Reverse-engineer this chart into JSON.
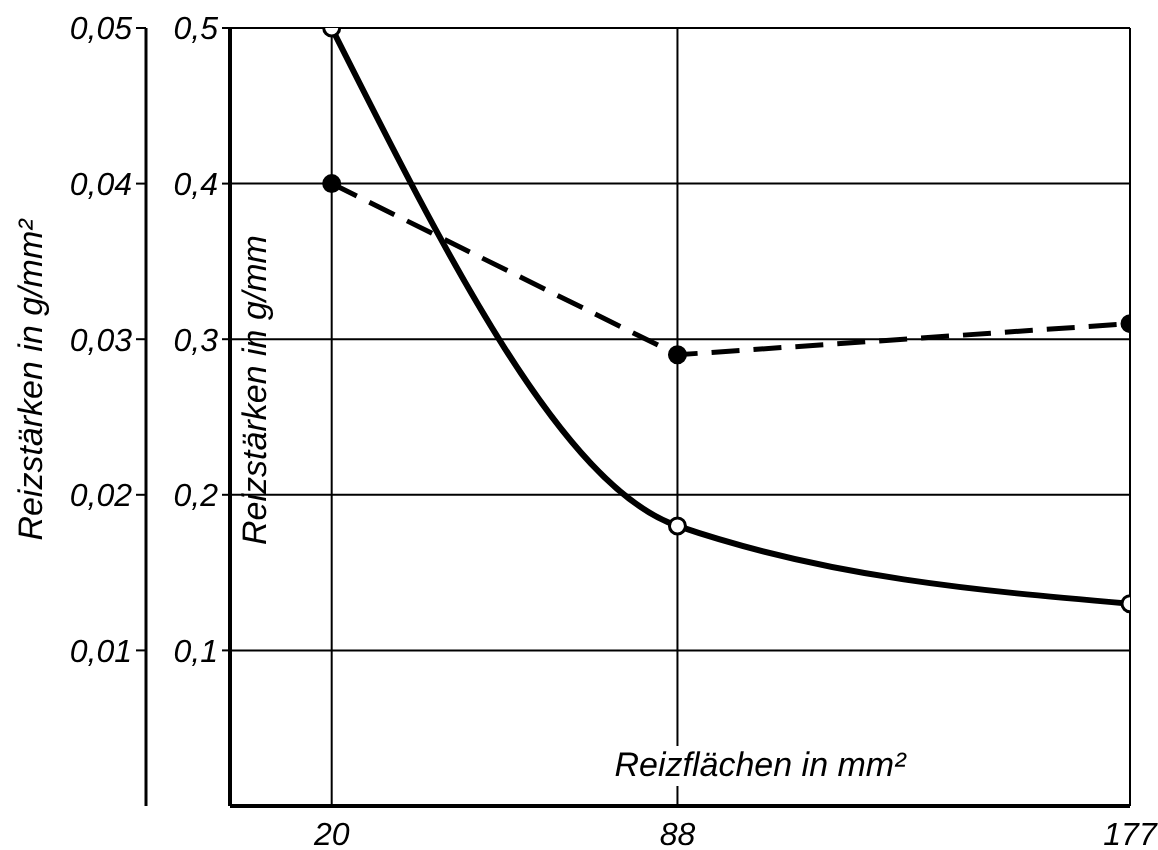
{
  "chart_data": {
    "type": "line",
    "xlabel": "Reizflächen in mm²",
    "ylabel": "Reizstärken in g/mm",
    "y2label": "Reizstärken in g/mm²",
    "x": [
      20,
      88,
      177
    ],
    "xlim": [
      0,
      177
    ],
    "xticks": [
      20,
      88,
      177
    ],
    "ylim": [
      0,
      0.5
    ],
    "yticks": [
      {
        "value": 0.1,
        "label": "0,1"
      },
      {
        "value": 0.2,
        "label": "0,2"
      },
      {
        "value": 0.3,
        "label": "0,3"
      },
      {
        "value": 0.4,
        "label": "0,4"
      },
      {
        "value": 0.5,
        "label": "0,5"
      }
    ],
    "y2lim": [
      0,
      0.05
    ],
    "y2ticks": [
      {
        "value": 0.01,
        "label": "0,01"
      },
      {
        "value": 0.02,
        "label": "0,02"
      },
      {
        "value": 0.03,
        "label": "0,03"
      },
      {
        "value": 0.04,
        "label": "0,04"
      },
      {
        "value": 0.05,
        "label": "0,05"
      }
    ],
    "grid": true,
    "marker": "circle",
    "series": [
      {
        "color": "#000000",
        "values": [
          0.5,
          0.18,
          0.13
        ],
        "axis": "y",
        "line_style": "solid"
      },
      {
        "color": "#000000",
        "values": [
          0.04,
          0.029,
          0.031
        ],
        "axis": "y2",
        "line_style": "dashed"
      }
    ]
  }
}
